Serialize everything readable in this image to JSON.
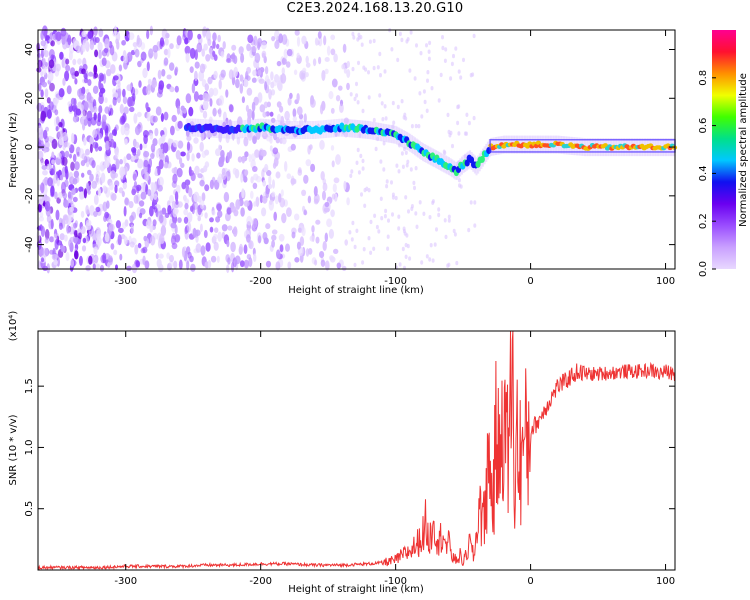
{
  "title": "C2E3.2024.168.13.20.G10",
  "colors": {
    "snr_line": "#ee3333",
    "axes": "#000000",
    "colormap": [
      "#e8d8ff",
      "#c9a0ff",
      "#9a4dff",
      "#6a00f0",
      "#1010f0",
      "#00c8ff",
      "#00e08a",
      "#40ff00",
      "#f0ff00",
      "#ff9000",
      "#ff1030",
      "#ff0090"
    ]
  },
  "chart_data": [
    {
      "type": "heatmap",
      "title": "C2E3.2024.168.13.20.G10",
      "xlabel": "Height of straight line (km)",
      "ylabel": "Frequency (Hz)",
      "xlim": [
        -365,
        107
      ],
      "ylim": [
        -50,
        48
      ],
      "xticks": [
        -300,
        -200,
        -100,
        0,
        100
      ],
      "yticks": [
        -40,
        -20,
        0,
        20,
        40
      ],
      "grid": false,
      "colorbar": {
        "label": "Normalized spectral amplitude",
        "range": [
          0,
          1
        ],
        "ticks": [
          0.0,
          0.2,
          0.4,
          0.6,
          0.8
        ]
      },
      "ridge": {
        "description": "dominant frequency ridge (Hz) vs height (km)",
        "x": [
          -250,
          -220,
          -200,
          -180,
          -160,
          -140,
          -120,
          -100,
          -90,
          -80,
          -70,
          -60,
          -55,
          -50,
          -45,
          -40,
          -35,
          -30,
          -20,
          -10,
          0,
          20,
          40,
          60,
          80,
          100
        ],
        "y": [
          8,
          7,
          8,
          7,
          7,
          8,
          7,
          5,
          2,
          -2,
          -5,
          -8,
          -10,
          -7,
          -5,
          -8,
          -4,
          0,
          1,
          1,
          1,
          1,
          0,
          0,
          0,
          0
        ]
      }
    },
    {
      "type": "line",
      "xlabel": "Height of straight line (km)",
      "ylabel": "SNR (10 * v/v)",
      "y_multiplier": "(x10⁴)",
      "xlim": [
        -365,
        107
      ],
      "ylim": [
        0,
        1.95
      ],
      "xticks": [
        -300,
        -200,
        -100,
        0,
        100
      ],
      "yticks": [
        0.5,
        1.0,
        1.5
      ],
      "grid": false,
      "series": [
        {
          "x": [
            -365,
            -340,
            -320,
            -300,
            -280,
            -260,
            -240,
            -220,
            -200,
            -180,
            -160,
            -140,
            -120,
            -110,
            -100,
            -95,
            -90,
            -85,
            -80,
            -78,
            -75,
            -72,
            -70,
            -68,
            -65,
            -62,
            -60,
            -58,
            -55,
            -52,
            -50,
            -47,
            -45,
            -42,
            -40,
            -38,
            -35,
            -33,
            -30,
            -28,
            -25,
            -23,
            -20,
            -18,
            -15,
            -13,
            -12,
            -10,
            -8,
            -5,
            -2,
            0,
            5,
            10,
            15,
            20,
            25,
            30,
            35,
            40,
            50,
            60,
            70,
            80,
            90,
            95,
            100,
            107
          ],
          "y": [
            0.02,
            0.02,
            0.02,
            0.03,
            0.03,
            0.03,
            0.04,
            0.04,
            0.05,
            0.05,
            0.04,
            0.04,
            0.05,
            0.06,
            0.08,
            0.12,
            0.15,
            0.2,
            0.28,
            0.38,
            0.22,
            0.45,
            0.32,
            0.2,
            0.35,
            0.15,
            0.25,
            0.1,
            0.08,
            0.12,
            0.05,
            0.15,
            0.22,
            0.1,
            0.3,
            0.6,
            0.35,
            0.7,
            0.9,
            0.5,
            1.2,
            0.8,
            1.58,
            0.9,
            1.3,
            1.93,
            0.6,
            1.1,
            0.9,
            1.0,
            1.05,
            1.15,
            1.2,
            1.3,
            1.4,
            1.5,
            1.53,
            1.58,
            1.62,
            1.6,
            1.6,
            1.61,
            1.62,
            1.62,
            1.63,
            1.6,
            1.62,
            1.6
          ]
        }
      ]
    }
  ]
}
